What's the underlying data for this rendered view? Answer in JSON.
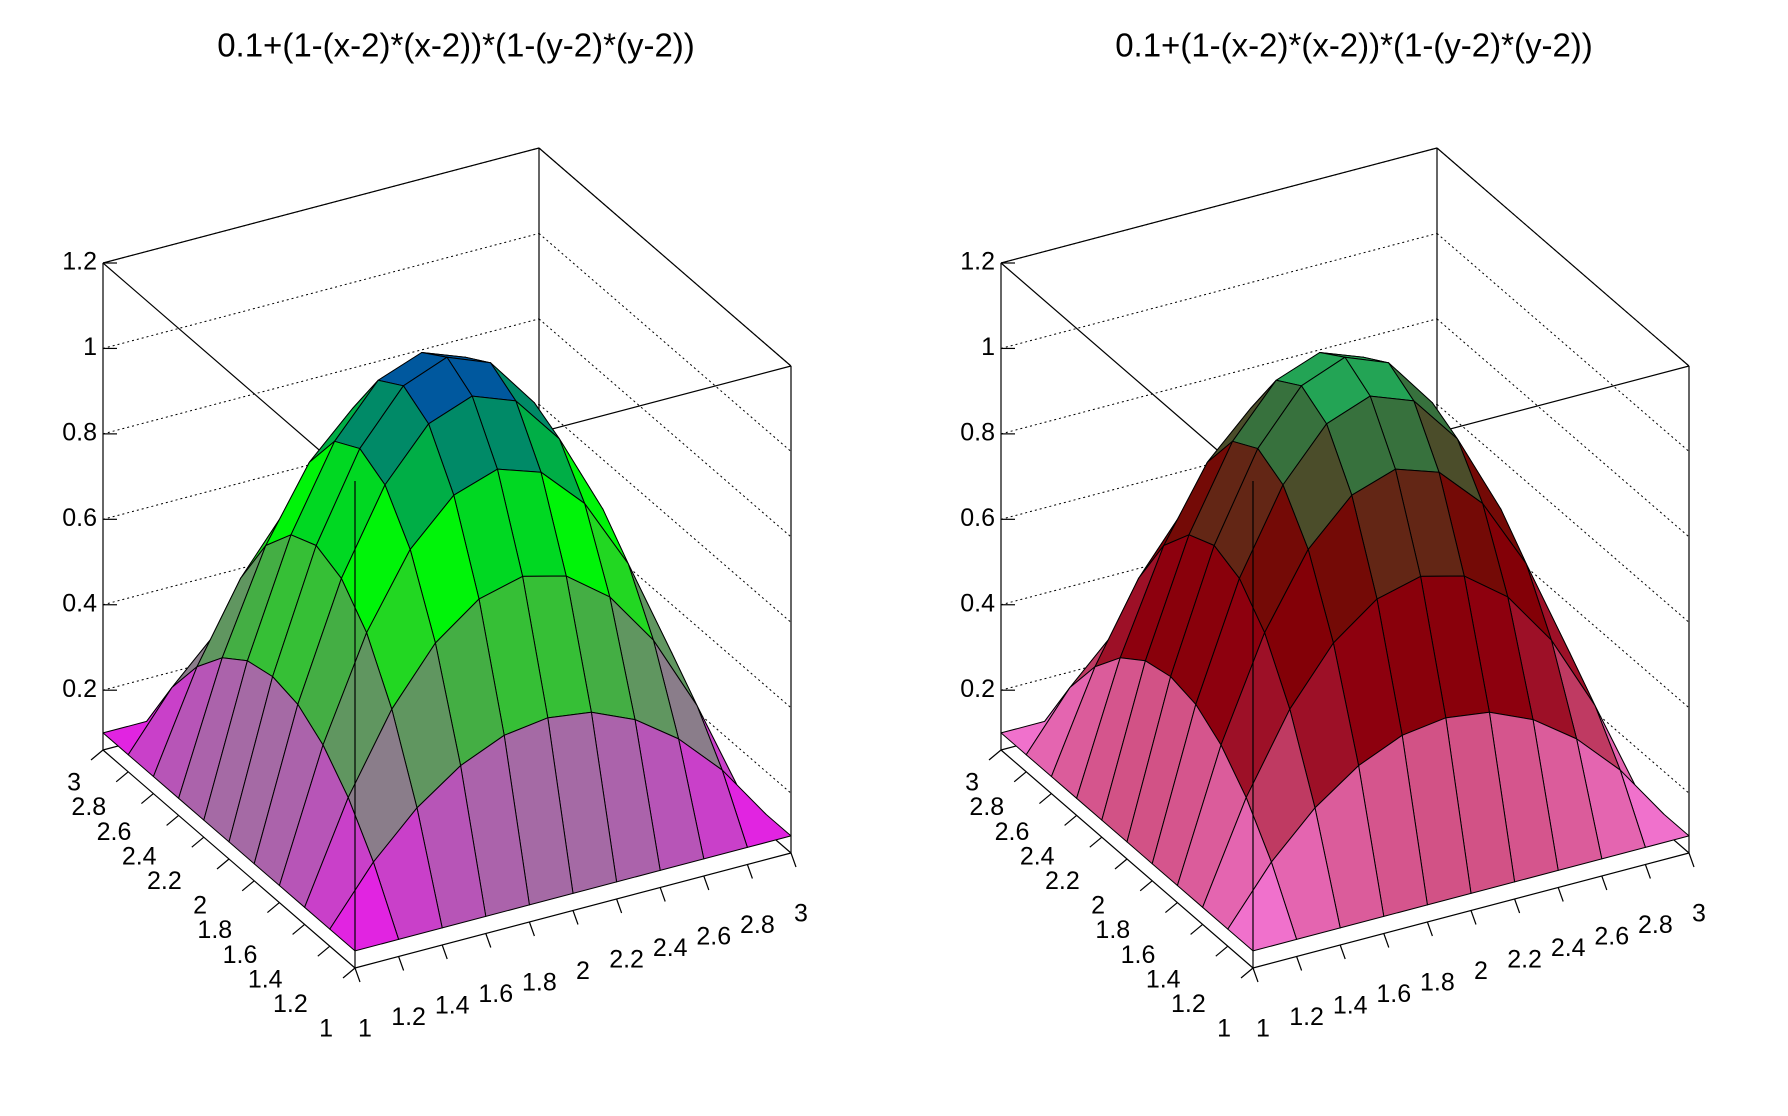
{
  "chart_data": [
    {
      "type": "surface",
      "title": "0.1+(1-(x-2)*(x-2))*(1-(y-2)*(y-2))",
      "x": [
        1,
        1.2,
        1.4,
        1.6,
        1.8,
        2,
        2.2,
        2.4,
        2.6,
        2.8,
        3
      ],
      "y": [
        1,
        1.2,
        1.4,
        1.6,
        1.8,
        2,
        2.2,
        2.4,
        2.6,
        2.8,
        3
      ],
      "z": [
        [
          0.1,
          0.1,
          0.1,
          0.1,
          0.1,
          0.1,
          0.1,
          0.1,
          0.1,
          0.1,
          0.1
        ],
        [
          0.1,
          0.23,
          0.33,
          0.402,
          0.446,
          0.46,
          0.446,
          0.402,
          0.33,
          0.23,
          0.1
        ],
        [
          0.1,
          0.33,
          0.51,
          0.638,
          0.714,
          0.74,
          0.714,
          0.638,
          0.51,
          0.33,
          0.1
        ],
        [
          0.1,
          0.402,
          0.638,
          0.806,
          0.906,
          0.94,
          0.906,
          0.806,
          0.638,
          0.402,
          0.1
        ],
        [
          0.1,
          0.446,
          0.714,
          0.906,
          1.022,
          1.06,
          1.022,
          0.906,
          0.714,
          0.446,
          0.1
        ],
        [
          0.1,
          0.46,
          0.74,
          0.94,
          1.06,
          1.1,
          1.06,
          0.94,
          0.74,
          0.46,
          0.1
        ],
        [
          0.1,
          0.446,
          0.714,
          0.906,
          1.022,
          1.06,
          1.022,
          0.906,
          0.714,
          0.446,
          0.1
        ],
        [
          0.1,
          0.402,
          0.638,
          0.806,
          0.906,
          0.94,
          0.906,
          0.806,
          0.638,
          0.402,
          0.1
        ],
        [
          0.1,
          0.33,
          0.51,
          0.638,
          0.714,
          0.74,
          0.714,
          0.638,
          0.51,
          0.33,
          0.1
        ],
        [
          0.1,
          0.23,
          0.33,
          0.402,
          0.446,
          0.46,
          0.446,
          0.402,
          0.33,
          0.23,
          0.1
        ],
        [
          0.1,
          0.1,
          0.1,
          0.1,
          0.1,
          0.1,
          0.1,
          0.1,
          0.1,
          0.1,
          0.1
        ]
      ],
      "xlim": [
        1,
        3
      ],
      "ylim": [
        1,
        3
      ],
      "zlim": [
        0.06,
        1.2
      ],
      "xticks": [
        1,
        1.2,
        1.4,
        1.6,
        1.8,
        2,
        2.2,
        2.4,
        2.6,
        2.8,
        3
      ],
      "yticks": [
        1,
        1.2,
        1.4,
        1.6,
        1.8,
        2,
        2.2,
        2.4,
        2.6,
        2.8,
        3
      ],
      "zticks": [
        0.2,
        0.4,
        0.6,
        0.8,
        1,
        1.2
      ],
      "grid": true,
      "palette": [
        "#ff00ff",
        "#a070a0",
        "#50a050",
        "#00ff00",
        "#009060",
        "#0000ff"
      ]
    },
    {
      "type": "surface",
      "title": "0.1+(1-(x-2)*(x-2))*(1-(y-2)*(y-2))",
      "x": [
        1,
        1.2,
        1.4,
        1.6,
        1.8,
        2,
        2.2,
        2.4,
        2.6,
        2.8,
        3
      ],
      "y": [
        1,
        1.2,
        1.4,
        1.6,
        1.8,
        2,
        2.2,
        2.4,
        2.6,
        2.8,
        3
      ],
      "z": [
        [
          0.1,
          0.1,
          0.1,
          0.1,
          0.1,
          0.1,
          0.1,
          0.1,
          0.1,
          0.1,
          0.1
        ],
        [
          0.1,
          0.23,
          0.33,
          0.402,
          0.446,
          0.46,
          0.446,
          0.402,
          0.33,
          0.23,
          0.1
        ],
        [
          0.1,
          0.33,
          0.51,
          0.638,
          0.714,
          0.74,
          0.714,
          0.638,
          0.51,
          0.33,
          0.1
        ],
        [
          0.1,
          0.402,
          0.638,
          0.806,
          0.906,
          0.94,
          0.906,
          0.806,
          0.638,
          0.402,
          0.1
        ],
        [
          0.1,
          0.446,
          0.714,
          0.906,
          1.022,
          1.06,
          1.022,
          0.906,
          0.714,
          0.446,
          0.1
        ],
        [
          0.1,
          0.46,
          0.74,
          0.94,
          1.06,
          1.1,
          1.06,
          0.94,
          0.74,
          0.46,
          0.1
        ],
        [
          0.1,
          0.446,
          0.714,
          0.906,
          1.022,
          1.06,
          1.022,
          0.906,
          0.714,
          0.446,
          0.1
        ],
        [
          0.1,
          0.402,
          0.638,
          0.806,
          0.906,
          0.94,
          0.906,
          0.806,
          0.638,
          0.402,
          0.1
        ],
        [
          0.1,
          0.33,
          0.51,
          0.638,
          0.714,
          0.74,
          0.714,
          0.638,
          0.51,
          0.33,
          0.1
        ],
        [
          0.1,
          0.23,
          0.33,
          0.402,
          0.446,
          0.46,
          0.446,
          0.402,
          0.33,
          0.23,
          0.1
        ],
        [
          0.1,
          0.1,
          0.1,
          0.1,
          0.1,
          0.1,
          0.1,
          0.1,
          0.1,
          0.1,
          0.1
        ]
      ],
      "xlim": [
        1,
        3
      ],
      "ylim": [
        1,
        3
      ],
      "zlim": [
        0.06,
        1.2
      ],
      "xticks": [
        1,
        1.2,
        1.4,
        1.6,
        1.8,
        2,
        2.2,
        2.4,
        2.6,
        2.8,
        3
      ],
      "yticks": [
        1,
        1.2,
        1.4,
        1.6,
        1.8,
        2,
        2.2,
        2.4,
        2.6,
        2.8,
        3
      ],
      "zticks": [
        0.2,
        0.4,
        0.6,
        0.8,
        1,
        1.2
      ],
      "grid": true,
      "palette": [
        "#ff80f0",
        "#d05080",
        "#900010",
        "#7a0000",
        "#3a6a3a",
        "#00ff80"
      ]
    }
  ]
}
